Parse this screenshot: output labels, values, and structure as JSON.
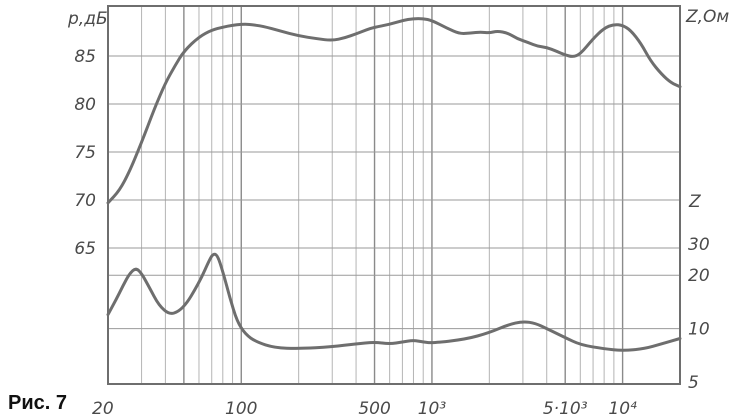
{
  "caption": "Рис. 7",
  "chart_data": {
    "type": "line",
    "x_scale": "log",
    "xlim": [
      20,
      20000
    ],
    "x_tick_labels": [
      {
        "x": 20,
        "label": "20"
      },
      {
        "x": 100,
        "label": "100"
      },
      {
        "x": 500,
        "label": "500"
      },
      {
        "x": 1000,
        "label": "10³"
      },
      {
        "x": 5000,
        "label": "5·10³"
      },
      {
        "x": 10000,
        "label": "10⁴"
      }
    ],
    "left_axis": {
      "label": "p,дБ",
      "ticks": [
        65,
        70,
        75,
        80,
        85
      ],
      "range": [
        60,
        90
      ]
    },
    "right_axis": {
      "label": "Z,Ом",
      "unit_label": "Z",
      "ticks": [
        5,
        10,
        20,
        30
      ],
      "range": [
        5,
        50
      ],
      "scale": "log"
    },
    "series": [
      {
        "axis": "left",
        "color": "#6e6e6e",
        "points": [
          [
            20,
            69.7
          ],
          [
            23,
            71.0
          ],
          [
            26,
            73.0
          ],
          [
            30,
            76.0
          ],
          [
            35,
            79.5
          ],
          [
            40,
            82.2
          ],
          [
            45,
            84.0
          ],
          [
            50,
            85.5
          ],
          [
            60,
            87.0
          ],
          [
            70,
            87.7
          ],
          [
            80,
            88.0
          ],
          [
            90,
            88.2
          ],
          [
            100,
            88.3
          ],
          [
            110,
            88.3
          ],
          [
            130,
            88.1
          ],
          [
            160,
            87.6
          ],
          [
            200,
            87.1
          ],
          [
            250,
            86.8
          ],
          [
            300,
            86.6
          ],
          [
            350,
            86.9
          ],
          [
            400,
            87.3
          ],
          [
            450,
            87.7
          ],
          [
            500,
            88.0
          ],
          [
            600,
            88.3
          ],
          [
            700,
            88.7
          ],
          [
            800,
            88.9
          ],
          [
            900,
            88.9
          ],
          [
            1000,
            88.7
          ],
          [
            1200,
            87.9
          ],
          [
            1400,
            87.3
          ],
          [
            1600,
            87.4
          ],
          [
            1800,
            87.5
          ],
          [
            2000,
            87.4
          ],
          [
            2200,
            87.6
          ],
          [
            2500,
            87.4
          ],
          [
            2800,
            86.8
          ],
          [
            3200,
            86.4
          ],
          [
            3600,
            86.0
          ],
          [
            4000,
            85.9
          ],
          [
            4500,
            85.5
          ],
          [
            5000,
            85.1
          ],
          [
            5500,
            84.9
          ],
          [
            6000,
            85.2
          ],
          [
            7000,
            86.8
          ],
          [
            8000,
            87.9
          ],
          [
            9000,
            88.3
          ],
          [
            10000,
            88.2
          ],
          [
            11000,
            87.7
          ],
          [
            12500,
            86.3
          ],
          [
            14000,
            84.5
          ],
          [
            16000,
            83.1
          ],
          [
            18000,
            82.2
          ],
          [
            20000,
            81.8
          ]
        ]
      },
      {
        "axis": "right",
        "color": "#6e6e6e",
        "points": [
          [
            20,
            12.0
          ],
          [
            22,
            14.5
          ],
          [
            24,
            17.5
          ],
          [
            26,
            20.5
          ],
          [
            28,
            22.0
          ],
          [
            30,
            20.5
          ],
          [
            33,
            17.0
          ],
          [
            37,
            13.5
          ],
          [
            42,
            12.0
          ],
          [
            47,
            12.5
          ],
          [
            52,
            14.0
          ],
          [
            57,
            16.5
          ],
          [
            62,
            19.5
          ],
          [
            67,
            23.5
          ],
          [
            71,
            26.5
          ],
          [
            75,
            26.0
          ],
          [
            80,
            21.0
          ],
          [
            87,
            15.0
          ],
          [
            95,
            11.0
          ],
          [
            105,
            9.3
          ],
          [
            120,
            8.4
          ],
          [
            150,
            7.8
          ],
          [
            200,
            7.7
          ],
          [
            300,
            7.9
          ],
          [
            400,
            8.2
          ],
          [
            500,
            8.4
          ],
          [
            600,
            8.2
          ],
          [
            700,
            8.4
          ],
          [
            800,
            8.6
          ],
          [
            900,
            8.4
          ],
          [
            1000,
            8.3
          ],
          [
            1500,
            8.7
          ],
          [
            2000,
            9.5
          ],
          [
            2500,
            10.5
          ],
          [
            3000,
            11.0
          ],
          [
            3500,
            10.7
          ],
          [
            4000,
            10.0
          ],
          [
            5000,
            8.9
          ],
          [
            6000,
            8.1
          ],
          [
            8000,
            7.7
          ],
          [
            10000,
            7.5
          ],
          [
            13000,
            7.7
          ],
          [
            16000,
            8.2
          ],
          [
            20000,
            8.8
          ]
        ]
      }
    ]
  }
}
